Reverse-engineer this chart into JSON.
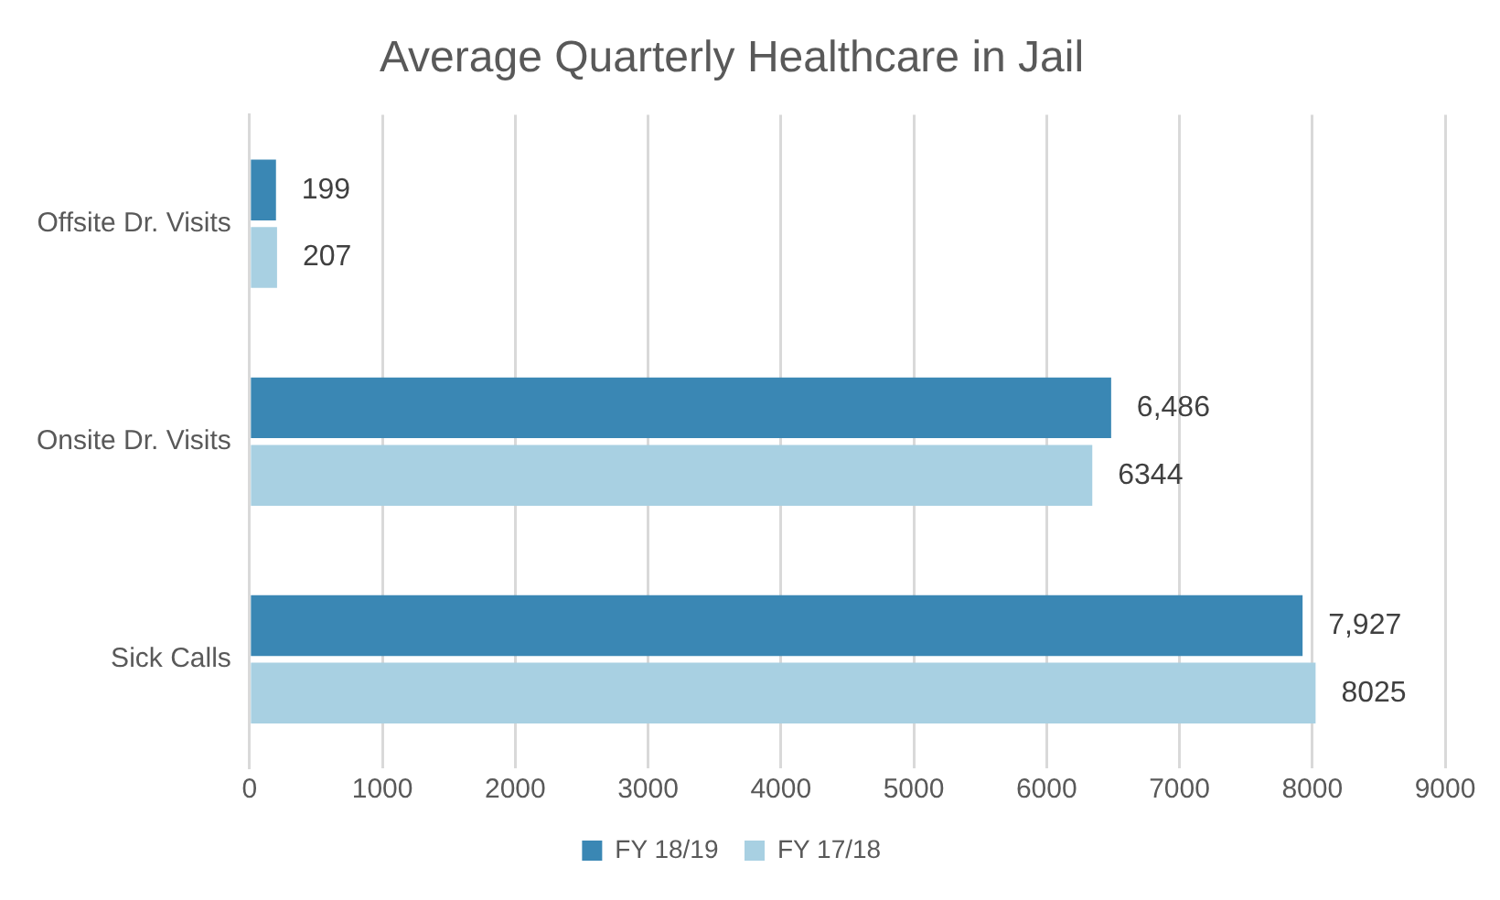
{
  "chart_data": {
    "type": "bar",
    "orientation": "horizontal",
    "title": "Average Quarterly Healthcare in Jail",
    "categories": [
      "Offsite Dr. Visits",
      "Onsite Dr. Visits",
      "Sick Calls"
    ],
    "series": [
      {
        "name": "FY 18/19",
        "color": "#3a87b4",
        "values": [
          199,
          6486,
          7927
        ],
        "value_labels": [
          "199",
          "6,486",
          "7,927"
        ]
      },
      {
        "name": "FY 17/18",
        "color": "#a8d0e2",
        "values": [
          207,
          6344,
          8025
        ],
        "value_labels": [
          "207",
          "6344",
          "8025"
        ]
      }
    ],
    "xlim": [
      0,
      9000
    ],
    "xticks": [
      0,
      1000,
      2000,
      3000,
      4000,
      5000,
      6000,
      7000,
      8000,
      9000
    ],
    "grid": "x",
    "legend": "bottom"
  }
}
